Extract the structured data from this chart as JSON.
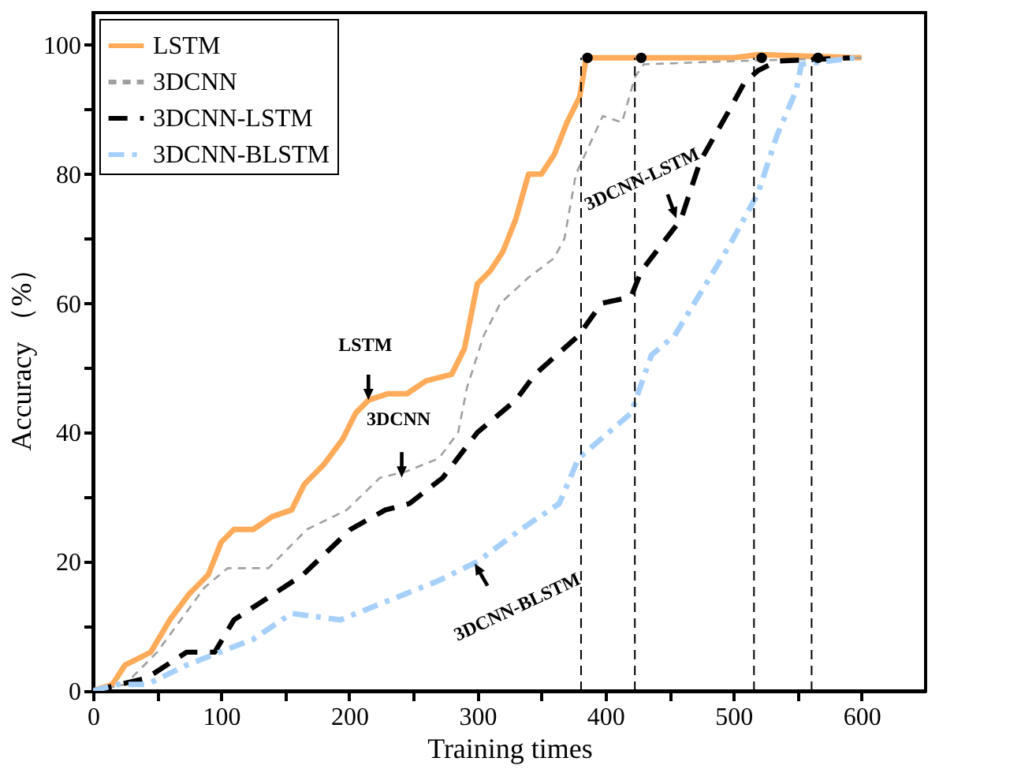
{
  "chart_data": {
    "type": "line",
    "xlabel": "Training times",
    "ylabel": "Accuracy （%）",
    "xlim": [
      0,
      650
    ],
    "ylim": [
      0,
      105
    ],
    "xticks": [
      0,
      {
        "value": 50,
        "label": null
      },
      100,
      {
        "value": 150,
        "label": null
      },
      200,
      {
        "value": 250,
        "label": null
      },
      300,
      {
        "value": 350,
        "label": null
      },
      400,
      {
        "value": 450,
        "label": null
      },
      500,
      {
        "value": 550,
        "label": null
      },
      600
    ],
    "yticks": [
      0,
      {
        "value": 10,
        "label": null
      },
      20,
      {
        "value": 30,
        "label": null
      },
      40,
      {
        "value": 50,
        "label": null
      },
      60,
      {
        "value": 70,
        "label": null
      },
      80,
      {
        "value": 90,
        "label": null
      },
      100
    ],
    "grid": false,
    "legend": "top left",
    "series": [
      {
        "name": "LSTM",
        "color": "#ffab5a",
        "line_style": "solid",
        "x": [
          0,
          15,
          25,
          35,
          45,
          60,
          75,
          90,
          100,
          110,
          125,
          140,
          155,
          165,
          180,
          195,
          205,
          215,
          230,
          245,
          260,
          280,
          290,
          300,
          310,
          320,
          330,
          340,
          350,
          360,
          370,
          380,
          385,
          500,
          520,
          600
        ],
        "values": [
          0,
          1,
          4,
          5,
          6,
          11,
          15,
          18,
          23,
          25,
          25,
          27,
          28,
          32,
          35,
          39,
          43,
          45,
          46,
          46,
          48,
          49,
          53,
          63,
          65,
          68,
          73,
          80,
          80,
          83,
          88,
          92,
          98,
          98,
          98.5,
          98
        ]
      },
      {
        "name": "3DCNN",
        "color": "#a0a0a0",
        "line_style": "dashed",
        "x": [
          0,
          25,
          50,
          87,
          105,
          137,
          167,
          198,
          224,
          245,
          270,
          285,
          292,
          305,
          318,
          340,
          360,
          368,
          377,
          398,
          413,
          423,
          430,
          500,
          600
        ],
        "values": [
          0,
          1,
          6,
          16,
          19,
          19,
          25,
          28,
          33,
          34,
          36,
          40,
          47,
          55,
          60,
          64,
          67,
          70,
          80,
          89,
          88,
          95,
          97,
          97.5,
          98
        ]
      },
      {
        "name": "3DCNN-LSTM",
        "color": "#000000",
        "line_style": "dashed",
        "x": [
          0,
          42,
          73,
          95,
          110,
          141,
          164,
          201,
          228,
          247,
          273,
          300,
          330,
          345,
          379,
          397,
          420,
          428,
          459,
          474,
          497,
          508,
          519,
          534,
          591
        ],
        "values": [
          0,
          2,
          6,
          6,
          11,
          15,
          18,
          25,
          28,
          29,
          33,
          40,
          45,
          49,
          55,
          60,
          61,
          65,
          73,
          82,
          90,
          94,
          96,
          97.5,
          98
        ]
      },
      {
        "name": "3DCNN-BLSTM",
        "color": "#a6d0fa",
        "line_style": "dashed",
        "x": [
          0,
          19,
          42,
          73,
          125,
          155,
          193,
          231,
          269,
          300,
          334,
          364,
          379,
          420,
          436,
          454,
          497,
          519,
          534,
          549,
          553,
          595
        ],
        "values": [
          0,
          1,
          1,
          4,
          8,
          12,
          11,
          14,
          17,
          20,
          25,
          29,
          36,
          43,
          52,
          55,
          69,
          77,
          86,
          93,
          97,
          98
        ]
      },
      {
        "type": "scatter",
        "marker": "circle",
        "color": "#000000",
        "x": [
          386,
          428,
          522,
          566
        ],
        "values": [
          98,
          98,
          98,
          98
        ]
      }
    ],
    "ref_lines": [
      {
        "axis": "x",
        "value": 381,
        "label": null,
        "line_style": "dashed",
        "color": "#000000"
      },
      {
        "axis": "x",
        "value": 423,
        "label": null,
        "line_style": "dashed",
        "color": "#000000"
      },
      {
        "axis": "x",
        "value": 516,
        "label": null,
        "line_style": "dashed",
        "color": "#000000"
      },
      {
        "axis": "x",
        "value": 561,
        "label": null,
        "line_style": "dashed",
        "color": "#000000"
      }
    ],
    "annotations": [
      {
        "text": "LSTM",
        "x": 215,
        "y": 47
      },
      {
        "text": "3DCNN",
        "x": 241,
        "y": 35
      },
      {
        "text": "3DCNN-LSTM",
        "x": 452,
        "y": 75
      },
      {
        "text": "3DCNN-BLSTM",
        "x": 303,
        "y": 18
      }
    ]
  }
}
